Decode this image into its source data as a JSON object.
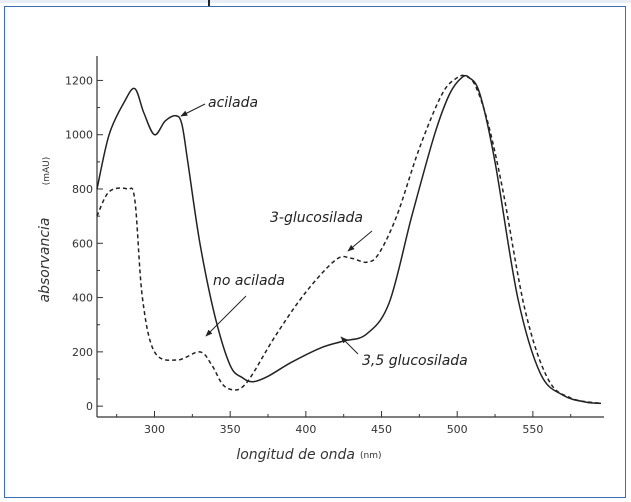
{
  "chart_data": {
    "type": "line",
    "xlabel": "longitud de onda",
    "xunit": "(nm)",
    "ylabel": "absorvancia",
    "yunit": "(mAU)",
    "xlim": [
      262,
      597
    ],
    "ylim": [
      -40,
      1290
    ],
    "xticks": [
      300,
      350,
      400,
      450,
      500,
      550
    ],
    "yticks": [
      0,
      200,
      400,
      600,
      800,
      1000,
      1200
    ],
    "grid": false,
    "series": [
      {
        "style": "solid",
        "x": [
          262,
          270,
          280,
          287,
          293,
          300,
          307,
          314,
          318,
          322,
          330,
          340,
          350,
          358,
          365,
          375,
          390,
          410,
          425,
          440,
          455,
          470,
          485,
          495,
          503,
          508,
          515,
          525,
          540,
          555,
          570,
          585,
          595
        ],
        "y": [
          800,
          1000,
          1120,
          1170,
          1080,
          1000,
          1050,
          1070,
          1040,
          900,
          600,
          330,
          150,
          105,
          90,
          110,
          160,
          215,
          240,
          265,
          380,
          700,
          1000,
          1150,
          1210,
          1210,
          1150,
          900,
          400,
          120,
          40,
          15,
          10
        ]
      },
      {
        "style": "dashed",
        "x": [
          262,
          270,
          282,
          287,
          292,
          300,
          315,
          330,
          338,
          345,
          352,
          358,
          365,
          380,
          400,
          420,
          430,
          440,
          448,
          460,
          475,
          490,
          500,
          506,
          512,
          520,
          530,
          545,
          560,
          575,
          595
        ],
        "y": [
          700,
          790,
          800,
          760,
          400,
          200,
          170,
          200,
          150,
          80,
          60,
          70,
          120,
          260,
          420,
          540,
          545,
          530,
          560,
          700,
          950,
          1150,
          1210,
          1215,
          1180,
          1050,
          800,
          350,
          100,
          30,
          10
        ]
      }
    ],
    "annotations": [
      {
        "text": "acilada",
        "x": 317,
        "y": 1080
      },
      {
        "text": "3-glucosilada",
        "x": 432,
        "y": 545
      },
      {
        "text": "no acilada",
        "x": 336,
        "y": 215
      },
      {
        "text": "3,5 glucosilada",
        "x": 437,
        "y": 268
      }
    ],
    "colors": {
      "line": "#222222",
      "axis": "#333333",
      "frame": "#3b6db5"
    }
  }
}
